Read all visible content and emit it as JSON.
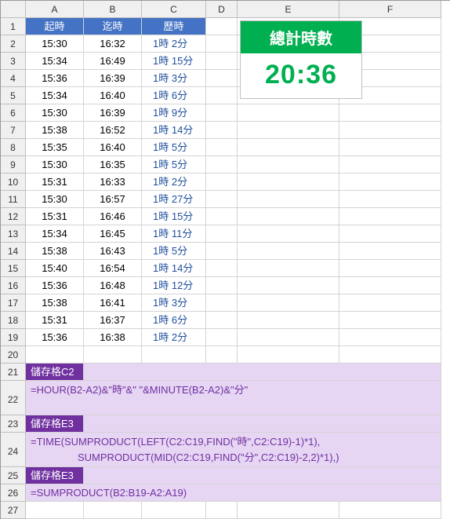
{
  "cols": [
    "A",
    "B",
    "C",
    "D",
    "E",
    "F"
  ],
  "headers": {
    "A": "起時",
    "B": "迄時",
    "C": "歷時"
  },
  "rows": [
    {
      "a": "15:30",
      "b": "16:32",
      "c": "1時 2分"
    },
    {
      "a": "15:34",
      "b": "16:49",
      "c": "1時 15分"
    },
    {
      "a": "15:36",
      "b": "16:39",
      "c": "1時 3分"
    },
    {
      "a": "15:34",
      "b": "16:40",
      "c": "1時 6分"
    },
    {
      "a": "15:30",
      "b": "16:39",
      "c": "1時 9分"
    },
    {
      "a": "15:38",
      "b": "16:52",
      "c": "1時 14分"
    },
    {
      "a": "15:35",
      "b": "16:40",
      "c": "1時 5分"
    },
    {
      "a": "15:30",
      "b": "16:35",
      "c": "1時 5分"
    },
    {
      "a": "15:31",
      "b": "16:33",
      "c": "1時 2分"
    },
    {
      "a": "15:30",
      "b": "16:57",
      "c": "1時 27分"
    },
    {
      "a": "15:31",
      "b": "16:46",
      "c": "1時 15分"
    },
    {
      "a": "15:34",
      "b": "16:45",
      "c": "1時 11分"
    },
    {
      "a": "15:38",
      "b": "16:43",
      "c": "1時 5分"
    },
    {
      "a": "15:40",
      "b": "16:54",
      "c": "1時 14分"
    },
    {
      "a": "15:36",
      "b": "16:48",
      "c": "1時 12分"
    },
    {
      "a": "15:38",
      "b": "16:41",
      "c": "1時 3分"
    },
    {
      "a": "15:31",
      "b": "16:37",
      "c": "1時 6分"
    },
    {
      "a": "15:36",
      "b": "16:38",
      "c": "1時 2分"
    }
  ],
  "total": {
    "label": "總計時數",
    "value": "20:36"
  },
  "notes": {
    "r21_label": "儲存格C2",
    "r22_formula": "=HOUR(B2-A2)&\"時\"&\" \"&MINUTE(B2-A2)&\"分\"",
    "r23_label": "儲存格E3",
    "r24_formula_l1": "=TIME(SUMPRODUCT(LEFT(C2:C19,FIND(\"時\",C2:C19)-1)*1),",
    "r24_formula_l2": "SUMPRODUCT(MID(C2:C19,FIND(\"分\",C2:C19)-2,2)*1),)",
    "r25_label": "儲存格E3",
    "r26_formula": "=SUMPRODUCT(B2:B19-A2:A19)"
  },
  "colors": {
    "header_bg": "#4472c4",
    "purple_head": "#7030a0",
    "purple_body": "#e6d5f3",
    "green": "#00b050",
    "link": "#1f4e9c"
  }
}
